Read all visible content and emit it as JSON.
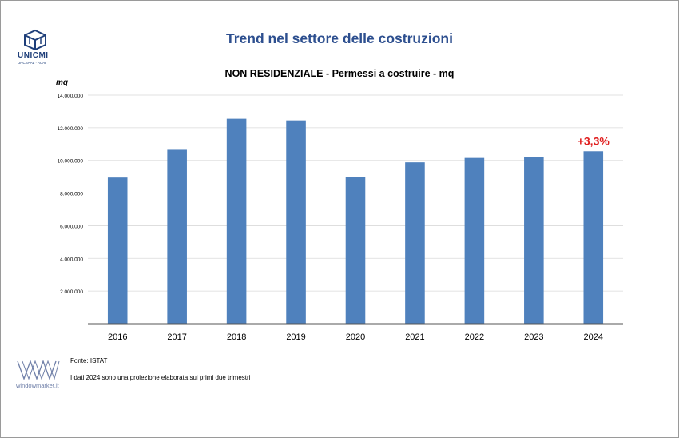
{
  "header": {
    "title": "Trend nel settore delle costruzioni",
    "logo_name": "UNICMI",
    "logo_sub": "UNCSAAL · ACAI"
  },
  "chart_data": {
    "type": "bar",
    "title": "NON RESIDENZIALE - Permessi a costruire - mq",
    "ylabel": "mq",
    "xlabel": "",
    "categories": [
      "2016",
      "2017",
      "2018",
      "2019",
      "2020",
      "2021",
      "2022",
      "2023",
      "2024"
    ],
    "values": [
      8950000,
      10650000,
      12550000,
      12450000,
      9000000,
      9880000,
      10150000,
      10230000,
      10560000
    ],
    "ylim": [
      0,
      14000000
    ],
    "yticks": [
      0,
      2000000,
      4000000,
      6000000,
      8000000,
      10000000,
      12000000,
      14000000
    ],
    "ytick_labels": [
      "-",
      "2.000.000",
      "4.000.000",
      "6.000.000",
      "8.000.000",
      "10.000.000",
      "12.000.000",
      "14.000.000"
    ],
    "grid": true,
    "bar_color": "#4f81bd",
    "annotation": {
      "category": "2024",
      "text": "+3,3%",
      "color": "#e02020"
    }
  },
  "footer": {
    "source": "Fonte: ISTAT",
    "note": "I dati 2024 sono una proiezione elaborata sui primi due trimestri",
    "wm_text": "windowmarket.it"
  }
}
